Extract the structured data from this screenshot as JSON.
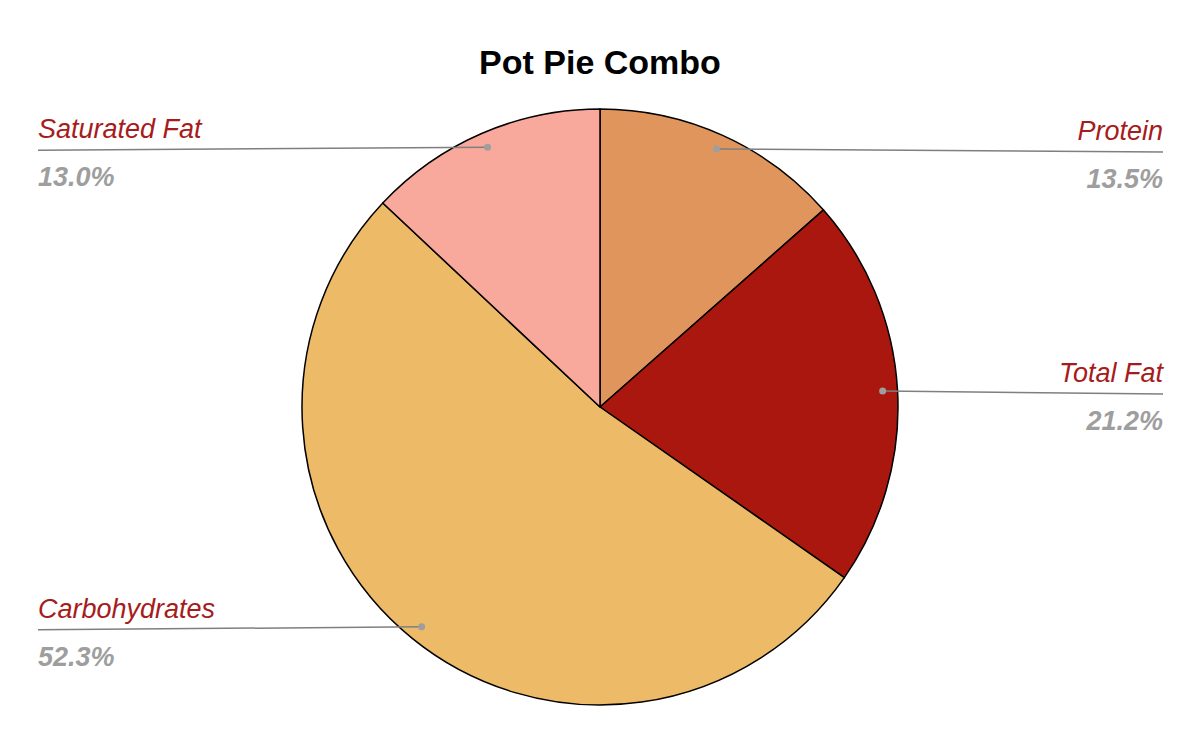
{
  "chart_data": {
    "type": "pie",
    "title": "Pot Pie Combo",
    "categories": [
      "Protein",
      "Total Fat",
      "Carbohydrates",
      "Saturated Fat"
    ],
    "values": [
      13.5,
      21.2,
      52.3,
      13.0
    ],
    "value_labels": [
      "13.5%",
      "21.2%",
      "52.3%",
      "13.0%"
    ],
    "colors": [
      "#e0955c",
      "#a9170f",
      "#edba67",
      "#f9a89c"
    ],
    "data_labels": true
  }
}
